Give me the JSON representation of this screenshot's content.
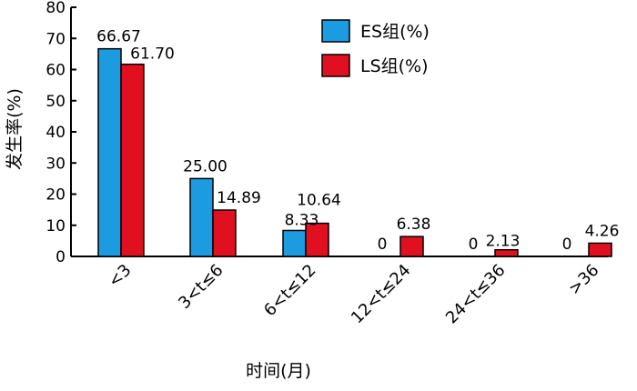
{
  "chart_data": {
    "type": "bar",
    "categories": [
      "<3",
      "3<t≤6",
      "6<t≤12",
      "12<t≤24",
      "24<t≤36",
      ">36"
    ],
    "series": [
      {
        "name": "ES组(%)",
        "color": "#1c9be0",
        "values": [
          66.67,
          25.0,
          8.33,
          0,
          0,
          0
        ],
        "labels": [
          "66.67",
          "25.00",
          "8.33",
          "0",
          "0",
          "0"
        ]
      },
      {
        "name": "LS组(%)",
        "color": "#e01020",
        "values": [
          61.7,
          14.89,
          10.64,
          6.38,
          2.13,
          4.26
        ],
        "labels": [
          "61.70",
          "14.89",
          "10.64",
          "6.38",
          "2.13",
          "4.26"
        ]
      }
    ],
    "xlabel": "时间(月)",
    "ylabel": "发生率(%)",
    "ylim": [
      0,
      80
    ],
    "yticks": [
      0,
      10,
      20,
      30,
      40,
      50,
      60,
      70,
      80
    ],
    "grid": false,
    "legend_position": "top-right"
  }
}
